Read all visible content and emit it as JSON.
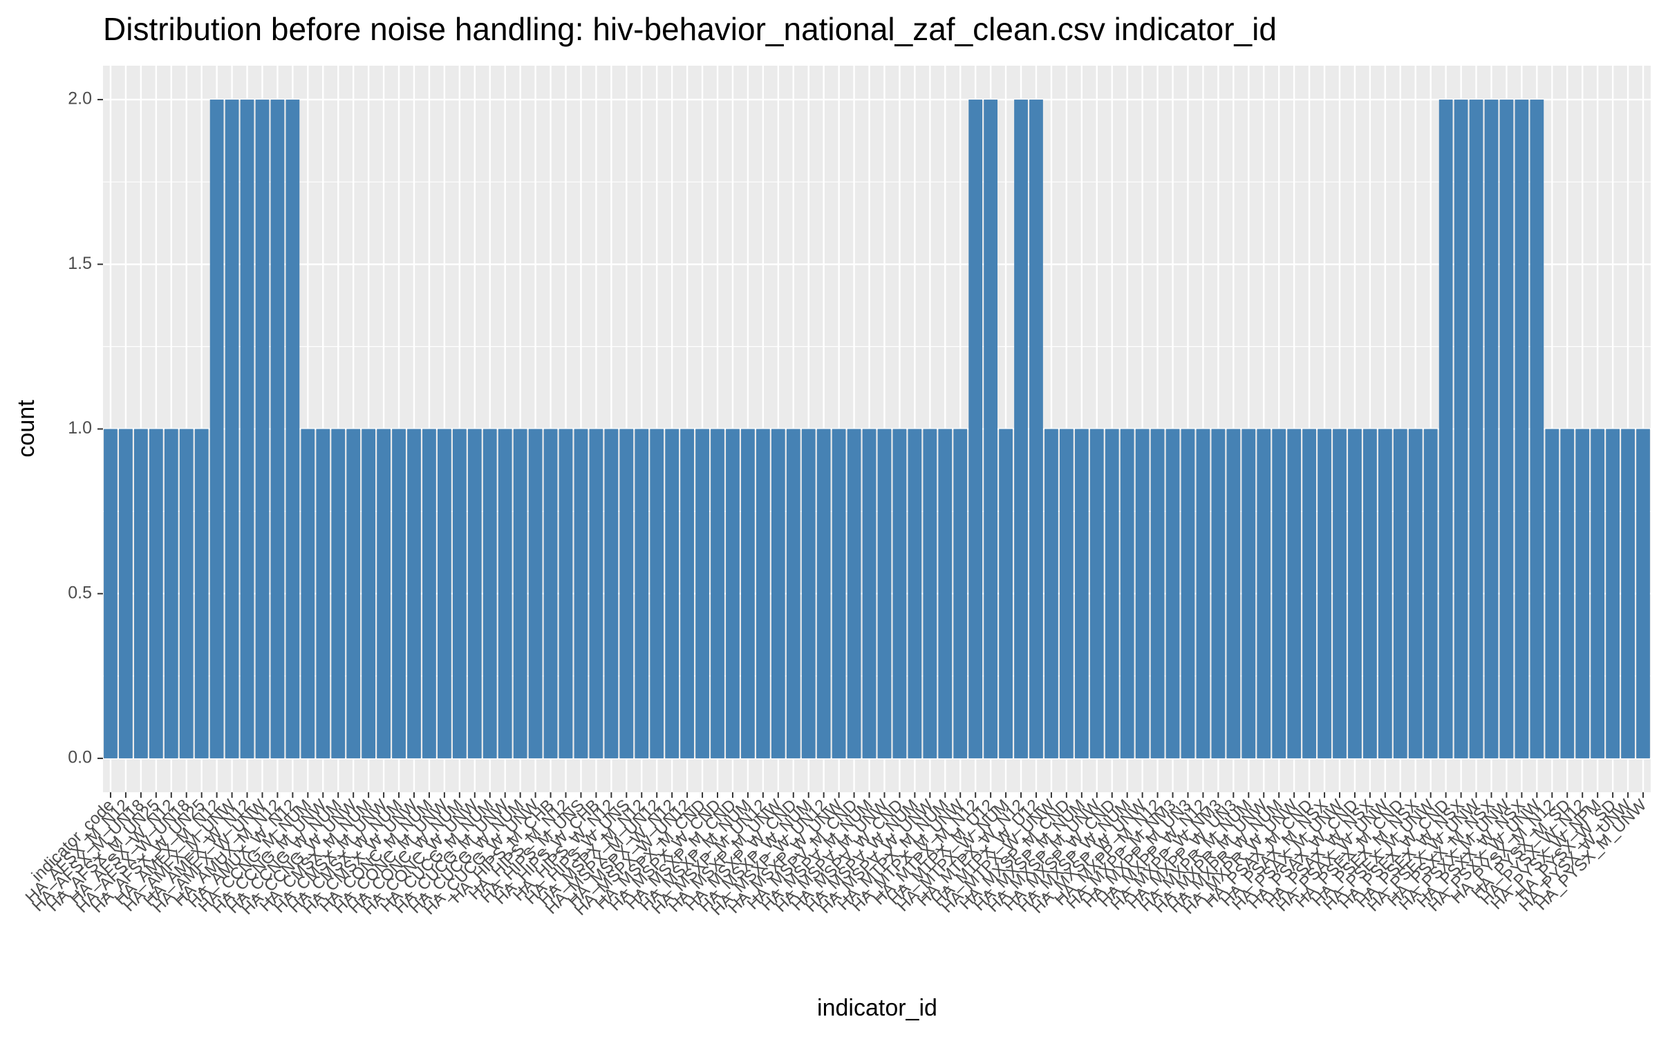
{
  "chart_data": {
    "type": "bar",
    "title": "Distribution before noise handling: hiv-behavior_national_zaf_clean.csv indicator_id",
    "x_label": "indicator_id",
    "y_label": "count",
    "categories": [
      "indicator_code",
      "HA_AFSX_M_N12",
      "HA_AFSX_M_UN18",
      "HA_AFSX_M_UN25",
      "HA_AFSX_W_N12",
      "HA_AFSX_W_UN18",
      "HA_AFSX_W_UN25",
      "HA_AMFX_M_N12",
      "HA_AMFX_M_UNW",
      "HA_AMFX_W_N12",
      "HA_AMFX_W_UNW",
      "HA_AMUX_M_N12",
      "HA_AMUX_W_N12",
      "HA_CCNG_M_NUM",
      "HA_CCNG_M_UNW",
      "HA_CCNG_W_NUM",
      "HA_CCNG_W_UNW",
      "HA_CMSX_M_NUM",
      "HA_CMSX_M_UNW",
      "HA_CMSX_W_NUM",
      "HA_CMSX_W_UNW",
      "HA_CONC_M_NUM",
      "HA_CONC_M_UNW",
      "HA_CONC_W_NUM",
      "HA_CONC_W_UNW",
      "HA_CUCG_M_NUM",
      "HA_CUCG_M_UNW",
      "HA_CUCG_W_NUM",
      "HA_CUCG_W_UNW",
      "HA_HIPS_M_CHB",
      "HA_HIPS_M_N12",
      "HA_HIPS_M_UNS",
      "HA_HIPS_W_CHB",
      "HA_HIPS_W_N12",
      "HA_HIPS_W_UNS",
      "HA_MSPX_M_N12",
      "HA_MSPX_M_UN12",
      "HA_MSPX_W_N12",
      "HA_MSPX_W_UN12",
      "HA_MSPX_M_CND",
      "HA_MSPX_W_CND",
      "HA_MSXP_M_CND",
      "HA_MSXP_M_NUM",
      "HA_MSXP_M_UN12",
      "HA_MSXP_M_UNW",
      "HA_MSXP_W_CND",
      "HA_MSXP_W_NUM",
      "HA_MSXP_W_UN12",
      "HA_MSXP_W_UNW",
      "HA_MSPV_M_CND",
      "HA_MSPV_M_NUM",
      "HA_MSPV_M_UNW",
      "HA_MSPV_W_CND",
      "HA_MSPV_W_NUM",
      "HA_MSPV_W_UNW",
      "HA_MTPX_M_NUM",
      "HA_MTPX_M_UNW",
      "HA_MTPX_M_N12",
      "HA_MTPX_M_U12",
      "HA_MTPX_W_NUM",
      "HA_MTPX_W_N12",
      "HA_MTPX_W_U12",
      "HA_MTPX_W_UNW",
      "HA_MXSP_M_CND",
      "HA_MXSP_M_NUM",
      "HA_MXSP_M_UNW",
      "HA_MXSP_W_CND",
      "HA_MXSP_W_NUM",
      "HA_MXSP_W_UNW",
      "HA_MXPP_M_N12",
      "HA_MXPP_M_NM3",
      "HA_MXPP_M_UN3",
      "HA_MXPP_W_N12",
      "HA_MXPP_W_NM3",
      "HA_MXPP_W_UN3",
      "HA_MXPR_M_NUM",
      "HA_MXPR_M_UNW",
      "HA_MXPR_W_NUM",
      "HA_MXPR_W_UNW",
      "HA_PSAX_M_CND",
      "HA_PSAX_M_NSX",
      "HA_PSAX_M_UNW",
      "HA_PSAX_W_CND",
      "HA_PSAX_W_NSX",
      "HA_PSAX_W_UNW",
      "HA_PSEX_M_CND",
      "HA_PSEX_M_NSX",
      "HA_PSEX_M_UNW",
      "HA_PSEX_W_CND",
      "HA_PSEX_W_NSX",
      "HA_PSEX_W_UNW",
      "HA_PSXX_M_NSX",
      "HA_PSXX_M_UNW",
      "HA_PSXX_W_NSX",
      "HA_PSXX_W_UNW",
      "HA_PYSX_M_N12",
      "HA_PYSX_M_SD",
      "HA_PYSX_W_N12",
      "HA_PYSX_W_NPM",
      "HA_PYSX_W_SD",
      "HA_PYSX_W_UNW",
      "HA_PYSX_M_UNW"
    ],
    "values": [
      1,
      1,
      1,
      1,
      1,
      1,
      1,
      2,
      2,
      2,
      2,
      2,
      2,
      1,
      1,
      1,
      1,
      1,
      1,
      1,
      1,
      1,
      1,
      1,
      1,
      1,
      1,
      1,
      1,
      1,
      1,
      1,
      1,
      1,
      1,
      1,
      1,
      1,
      1,
      1,
      1,
      1,
      1,
      1,
      1,
      1,
      1,
      1,
      1,
      1,
      1,
      1,
      1,
      1,
      1,
      1,
      1,
      2,
      2,
      1,
      2,
      2,
      1,
      1,
      1,
      1,
      1,
      1,
      1,
      1,
      1,
      1,
      1,
      1,
      1,
      1,
      1,
      1,
      1,
      1,
      1,
      1,
      1,
      1,
      1,
      1,
      1,
      1,
      2,
      2,
      2,
      2,
      2,
      2,
      2,
      1,
      1,
      1,
      1,
      1,
      1,
      1
    ],
    "color": "#4682b4",
    "ylim": [
      -0.103,
      2.103
    ],
    "yticks": [
      {
        "value": 0,
        "label": "0.0"
      },
      0.5,
      {
        "value": 1,
        "label": "1.0"
      },
      1.5,
      {
        "value": 2,
        "label": "2.0"
      }
    ],
    "grid": true
  }
}
